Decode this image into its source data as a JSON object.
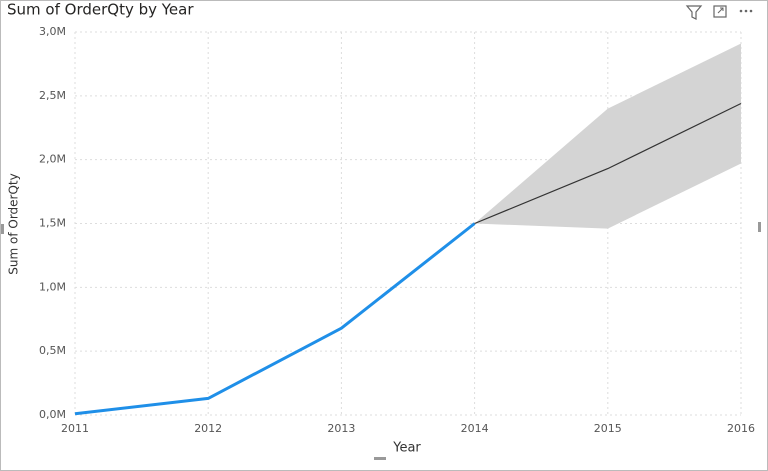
{
  "chart_data": {
    "type": "line",
    "title": "Sum of OrderQty by Year",
    "x_label": "Year",
    "y_label": "Sum of OrderQty",
    "x": [
      2011,
      2012,
      2013,
      2014,
      2015,
      2016
    ],
    "xlim": [
      2011,
      2016
    ],
    "xticks": [
      2011,
      2012,
      2013,
      2014,
      2015,
      2016
    ],
    "ylim": [
      0,
      3000000
    ],
    "yticks": [
      {
        "value": 0,
        "label": "0,0M"
      },
      {
        "value": 500000,
        "label": "0,5M"
      },
      {
        "value": 1000000,
        "label": "1,0M"
      },
      {
        "value": 1500000,
        "label": "1,5M"
      },
      {
        "value": 2000000,
        "label": "2,0M"
      },
      {
        "value": 2500000,
        "label": "2,5M"
      },
      {
        "value": 3000000,
        "label": "3,0M"
      }
    ],
    "grid": true,
    "series": [
      {
        "color": "#1f8fe8",
        "values": [
          10000,
          130000,
          680000,
          1500000,
          null,
          null
        ]
      },
      {
        "color": "#333333",
        "values": [
          null,
          null,
          null,
          1500000,
          1930000,
          2440000
        ]
      }
    ],
    "band": {
      "color": "#d4d4d4",
      "upper": [
        null,
        null,
        null,
        1500000,
        2400000,
        2910000
      ],
      "lower": [
        null,
        null,
        null,
        1500000,
        1460000,
        1970000
      ]
    }
  }
}
